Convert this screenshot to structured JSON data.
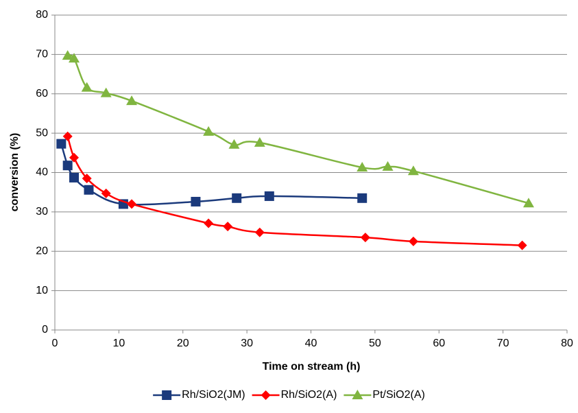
{
  "chart_data": {
    "type": "line",
    "x_label": "Time on stream (h)",
    "y_label": "conversion (%)",
    "xlim": [
      0,
      80
    ],
    "xticks": [
      0,
      10,
      20,
      30,
      40,
      50,
      60,
      70,
      80
    ],
    "ylim": [
      0,
      80
    ],
    "yticks": [
      0,
      10,
      20,
      30,
      40,
      50,
      60,
      70,
      80
    ],
    "grid": true,
    "smooth": true,
    "legend": "bottom",
    "series": [
      {
        "name": "Rh/SiO2(JM)",
        "color": "#1b3a7c",
        "marker": "square",
        "x": [
          1,
          2,
          3,
          5.3,
          10.7,
          22,
          28.4,
          33.5,
          48
        ],
        "values": [
          47.3,
          41.8,
          38.7,
          35.6,
          32,
          32.6,
          33.5,
          34,
          33.5
        ]
      },
      {
        "name": "Rh/SiO2(A)",
        "color": "#ff0000",
        "marker": "diamond",
        "x": [
          2,
          3,
          5,
          8,
          12,
          24,
          27,
          32,
          48.5,
          56,
          73
        ],
        "values": [
          49.2,
          43.8,
          38.5,
          34.7,
          32,
          27.1,
          26.3,
          24.8,
          23.5,
          22.5,
          21.5
        ]
      },
      {
        "name": "Pt/SiO2(A)",
        "color": "#80b540",
        "marker": "triangle",
        "x": [
          2,
          3,
          5,
          8,
          12,
          24,
          28,
          32,
          48,
          52,
          56,
          74
        ],
        "values": [
          69.7,
          69,
          61.6,
          60.2,
          58.2,
          50.4,
          47.1,
          47.6,
          41.3,
          41.5,
          40.4,
          32.2
        ]
      }
    ]
  }
}
